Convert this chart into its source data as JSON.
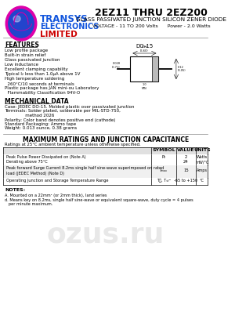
{
  "title": "2EZ11 THRU 2EZ200",
  "subtitle1": "GLASS PASSIVATED JUNCTION SILICON ZENER DIODE",
  "subtitle2": "VOLTAGE - 11 TO 200 Volts      Power - 2.0 Watts",
  "features_title": "FEATURES",
  "features": [
    "Low profile package",
    "Built-in strain relief",
    "Glass passivated junction",
    "Low inductance",
    "Excellent clamping capability",
    "Typical I₂ less than 1.0μA above 1V",
    "High temperature soldering",
    "  260°C/10 seconds at terminals",
    "Plastic package has JAN mini-ou Laboratory",
    "  Flammability Classification 94V-O"
  ],
  "mech_title": "MECHANICAL DATA",
  "mech_data": [
    "Case: JEDEC DO-15. Molded plastic over passivated junction",
    "Terminals: Solder plated, solderable per MIL-STD-750,",
    "               method 2026",
    "Polarity: Color band denotes positive end (cathode)",
    "Standard Packaging: Ammo tape",
    "Weight: 0.013 ounce, 0.38 grams"
  ],
  "table_title": "MAXIMUM RATINGS AND JUNCTION CAPACITANCE",
  "table_note": "Ratings at 25°C ambient temperature unless otherwise specified.",
  "table_headers": [
    "",
    "SYMBOL",
    "VALUE",
    "UNITS"
  ],
  "table_rows": [
    [
      "Peak Pulse Power Dissipated on (Note A)",
      "P₂",
      "2",
      "Watts"
    ],
    [
      "Derating above 75°C",
      "",
      "24",
      "mW/°C"
    ],
    [
      "Peak forward Surge Current 8.2ms single half sine-wave superimposed on rated\nload (JEDEC Method) (Note D)",
      "Iₘₐₓ",
      "15",
      "Amps"
    ],
    [
      "Operating Junction and Storage Temperature Range",
      "Tⰼ, Tₛₜᴳ",
      "-65 to +150",
      "°C"
    ]
  ],
  "notes_title": "NOTES:",
  "notes": [
    "A. Mounted on a 22mm² (or 2mm thick), land series",
    "d. Means key on 8.2ms, single half sine-wave or equivalent square-wave, duty cycle = 4 pulses",
    "   per minute maximum."
  ],
  "logo_text1": "TRANSYS",
  "logo_text2": "ELECTRONICS",
  "logo_text3": "LIMITED",
  "bg_color": "#ffffff",
  "text_color": "#000000",
  "header_color": "#1a1aff",
  "logo_globe_color1": "#cc0099",
  "logo_globe_color2": "#0000cc",
  "underline_color": "#cc0000",
  "package_label": "DO-15"
}
